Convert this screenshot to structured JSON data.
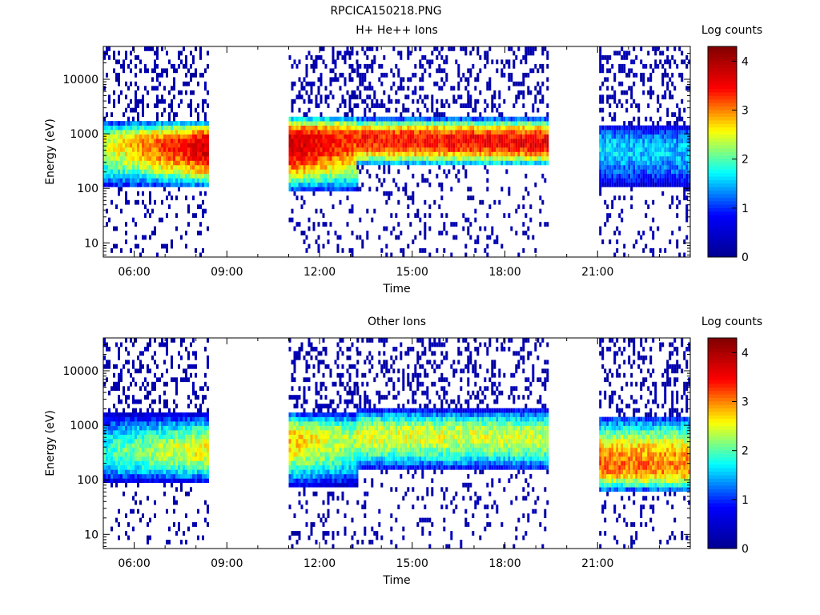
{
  "figure_title": "RPCICA150218.PNG",
  "chart_data": [
    {
      "type": "heatmap",
      "title": "H+ He++ Ions",
      "xlabel": "Time",
      "ylabel": "Energy (eV)",
      "x_tick_labels": [
        "06:00",
        "09:00",
        "12:00",
        "15:00",
        "18:00",
        "21:00"
      ],
      "x_ticks_hours": [
        6,
        9,
        12,
        15,
        18,
        21
      ],
      "xlim_hours": [
        5.0,
        24.0
      ],
      "y_tick_labels": [
        "10",
        "100",
        "1000",
        "10000"
      ],
      "y_ticks": [
        10,
        100,
        1000,
        10000
      ],
      "ylim": [
        5.5,
        40000
      ],
      "y_scale": "log",
      "colorbar_label": "Log counts",
      "colorbar_ticks": [
        "0",
        "1",
        "2",
        "3",
        "4"
      ],
      "colorbar_range": [
        0,
        4.3
      ],
      "colormap": [
        "#00008f",
        "#0000ff",
        "#00ffff",
        "#ffff00",
        "#ff0000",
        "#800000"
      ],
      "data_gaps_hours": [
        [
          8.35,
          11.0
        ],
        [
          19.35,
          21.05
        ]
      ],
      "segments": [
        {
          "start": 5.0,
          "end": 8.35,
          "peak_energy": [
            700,
            600
          ],
          "peak_level": [
            2.4,
            3.8
          ],
          "band_low": 100,
          "band_high": 1800
        },
        {
          "start": 11.0,
          "end": 13.2,
          "peak_energy": [
            700,
            900
          ],
          "peak_level": [
            3.8,
            3.2
          ],
          "band_low": 90,
          "band_high": 2200
        },
        {
          "start": 13.2,
          "end": 19.35,
          "peak_energy": [
            800,
            700
          ],
          "peak_level": [
            3.4,
            3.6
          ],
          "band_low": 250,
          "band_high": 2000
        },
        {
          "start": 21.05,
          "end": 24.0,
          "peak_energy": [
            600,
            500
          ],
          "peak_level": [
            1.6,
            1.5
          ],
          "band_low": 100,
          "band_high": 1500
        }
      ]
    },
    {
      "type": "heatmap",
      "title": "Other Ions",
      "xlabel": "Time",
      "ylabel": "Energy (eV)",
      "x_tick_labels": [
        "06:00",
        "09:00",
        "12:00",
        "15:00",
        "18:00",
        "21:00"
      ],
      "x_ticks_hours": [
        6,
        9,
        12,
        15,
        18,
        21
      ],
      "xlim_hours": [
        5.0,
        24.0
      ],
      "y_tick_labels": [
        "10",
        "100",
        "1000",
        "10000"
      ],
      "y_ticks": [
        10,
        100,
        1000,
        10000
      ],
      "ylim": [
        5.5,
        40000
      ],
      "y_scale": "log",
      "colorbar_label": "Log counts",
      "colorbar_ticks": [
        "0",
        "1",
        "2",
        "3",
        "4"
      ],
      "colorbar_range": [
        0,
        4.3
      ],
      "colormap": [
        "#00008f",
        "#0000ff",
        "#00ffff",
        "#ffff00",
        "#ff0000",
        "#800000"
      ],
      "data_gaps_hours": [
        [
          8.35,
          11.0
        ],
        [
          19.35,
          21.05
        ]
      ],
      "segments": [
        {
          "start": 5.0,
          "end": 8.35,
          "peak_energy": [
            300,
            350
          ],
          "peak_level": [
            1.9,
            2.6
          ],
          "band_low": 90,
          "band_high": 1600
        },
        {
          "start": 11.0,
          "end": 13.2,
          "peak_energy": [
            600,
            600
          ],
          "peak_level": [
            2.8,
            2.2
          ],
          "band_low": 80,
          "band_high": 1800
        },
        {
          "start": 13.2,
          "end": 19.35,
          "peak_energy": [
            700,
            600
          ],
          "peak_level": [
            2.5,
            2.4
          ],
          "band_low": 150,
          "band_high": 2000
        },
        {
          "start": 21.05,
          "end": 24.0,
          "peak_energy": [
            180,
            170
          ],
          "peak_level": [
            3.1,
            3.0
          ],
          "band_low": 60,
          "band_high": 1500
        }
      ]
    }
  ]
}
